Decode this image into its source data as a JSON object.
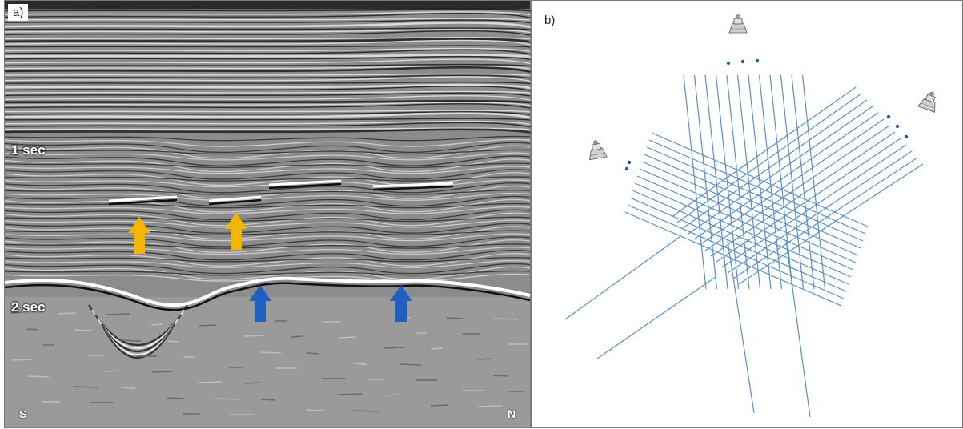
{
  "panel_a": {
    "label": "a)",
    "time_labels": [
      "1 sec",
      "2 sec"
    ],
    "direction_left": "S",
    "direction_right": "N",
    "colors": {
      "yellow_arrow": "#f2b600",
      "blue_arrow": "#1f5fbf"
    }
  },
  "panel_b": {
    "label": "b)",
    "line_color": "#5b8fc7",
    "dot_color": "#1e5aa8",
    "icon": "survey-vessel-icon"
  }
}
